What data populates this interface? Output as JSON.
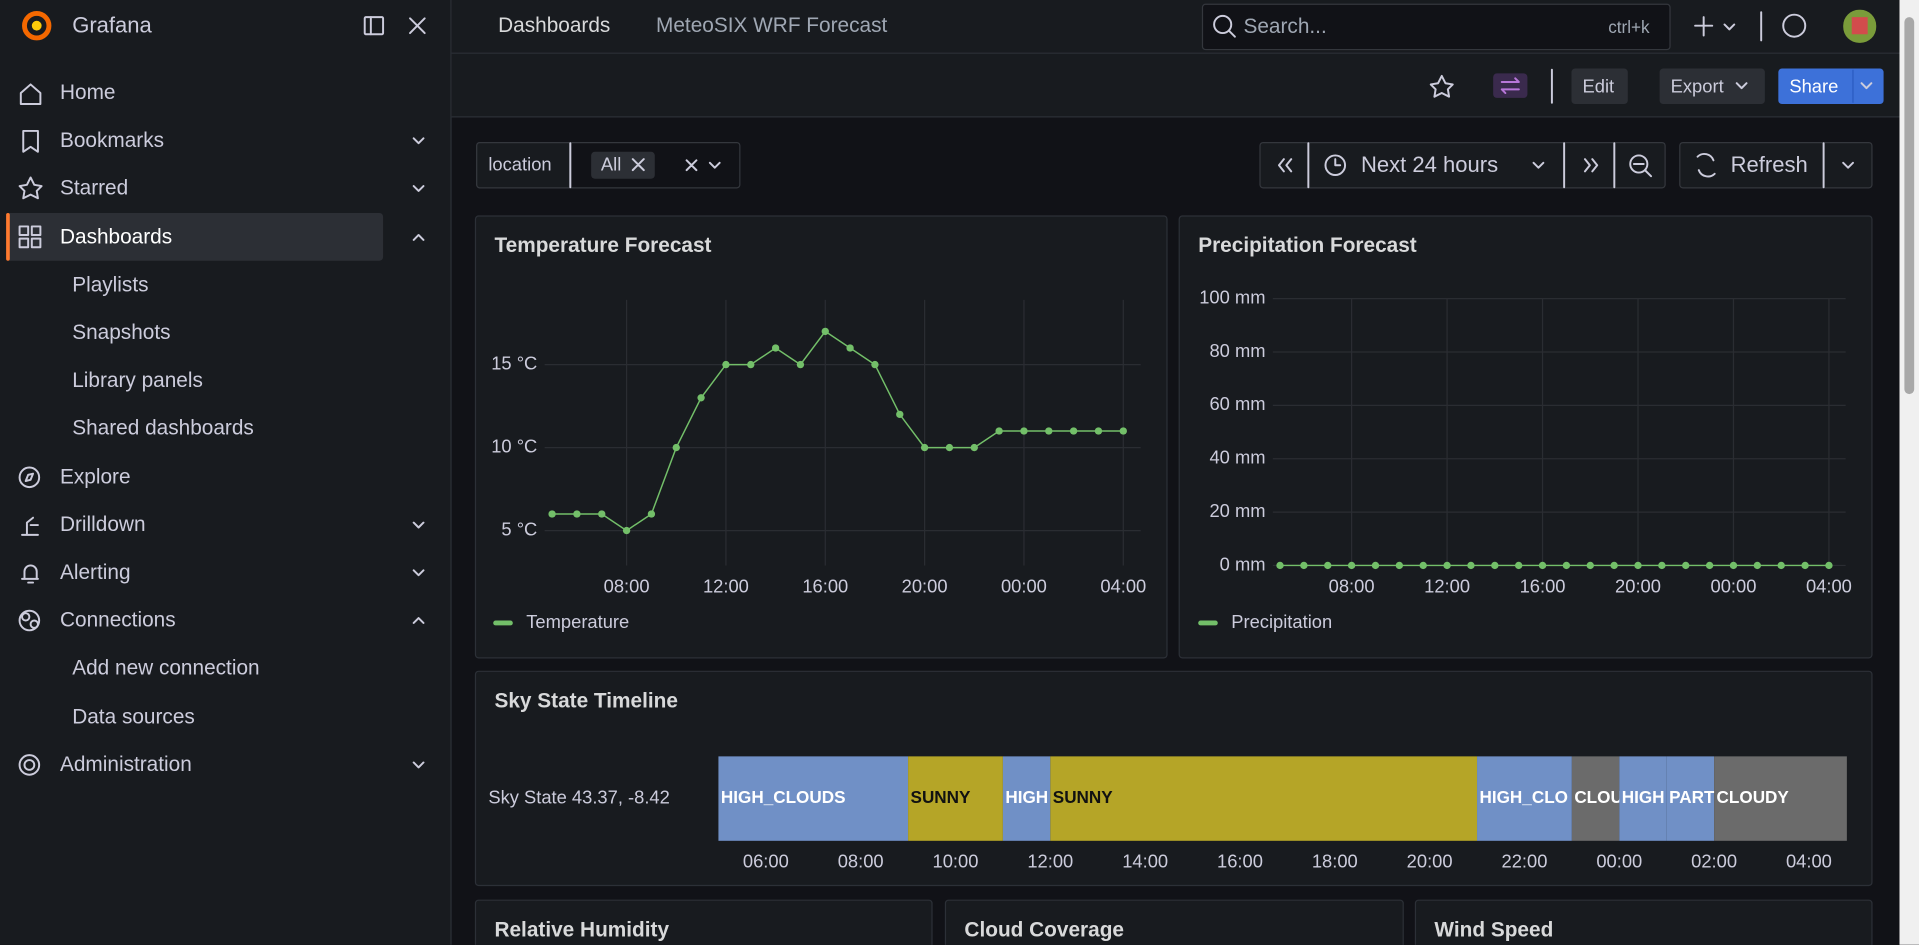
{
  "sidebar": {
    "brand": "Grafana",
    "items": [
      "Home",
      "Bookmarks",
      "Starred",
      "Dashboards",
      "Playlists",
      "Snapshots",
      "Library panels",
      "Shared dashboards",
      "Explore",
      "Drilldown",
      "Alerting",
      "Connections",
      "Add new connection",
      "Data sources",
      "Administration"
    ]
  },
  "topbar": {
    "breadcrumb": [
      "Dashboards",
      "MeteoSIX WRF Forecast"
    ],
    "search": "Search...",
    "shortcut": "ctrl+k"
  },
  "toolbar": {
    "edit": "Edit",
    "export": "Export",
    "share": "Share"
  },
  "variables": {
    "label": "location",
    "value": "All"
  },
  "time": {
    "range": "Next 24 hours",
    "refresh": "Refresh"
  },
  "panels": [
    {
      "type": "line",
      "title": "Temperature Forecast",
      "x": [
        5,
        6,
        7,
        8,
        9,
        10,
        11,
        12,
        13,
        14,
        15,
        16,
        17,
        18,
        19,
        20,
        21,
        22,
        23,
        24,
        25,
        26,
        27,
        28
      ],
      "series": [
        {
          "name": "Temperature",
          "color": "#73bf69",
          "values": [
            6,
            6,
            6,
            5,
            6,
            10,
            13,
            15,
            15,
            16,
            15,
            17,
            16,
            15,
            12,
            10,
            10,
            10,
            11,
            11,
            11,
            11,
            11,
            11
          ]
        }
      ],
      "xlim": [
        4.7,
        28.7
      ],
      "ylim": [
        2.9,
        18.9
      ],
      "xticks": [
        {
          "value": 8,
          "label": "08:00"
        },
        {
          "value": 12,
          "label": "12:00"
        },
        {
          "value": 16,
          "label": "16:00"
        },
        {
          "value": 20,
          "label": "20:00"
        },
        {
          "value": 24,
          "label": "00:00"
        },
        {
          "value": 28,
          "label": "04:00"
        }
      ],
      "yticks": [
        {
          "value": 5,
          "label": "5 °C"
        },
        {
          "value": 10,
          "label": "10 °C"
        },
        {
          "value": 15,
          "label": "15 °C"
        }
      ],
      "grid": true
    },
    {
      "type": "line",
      "title": "Precipitation Forecast",
      "x": [
        5,
        6,
        7,
        8,
        9,
        10,
        11,
        12,
        13,
        14,
        15,
        16,
        17,
        18,
        19,
        20,
        21,
        22,
        23,
        24,
        25,
        26,
        27,
        28
      ],
      "series": [
        {
          "name": "Precipitation",
          "color": "#73bf69",
          "values": [
            0,
            0,
            0,
            0,
            0,
            0,
            0,
            0,
            0,
            0,
            0,
            0,
            0,
            0,
            0,
            0,
            0,
            0,
            0,
            0,
            0,
            0,
            0,
            0
          ]
        }
      ],
      "xlim": [
        4.7,
        28.7
      ],
      "ylim": [
        0,
        100
      ],
      "xticks": [
        {
          "value": 8,
          "label": "08:00"
        },
        {
          "value": 12,
          "label": "12:00"
        },
        {
          "value": 16,
          "label": "16:00"
        },
        {
          "value": 20,
          "label": "20:00"
        },
        {
          "value": 24,
          "label": "00:00"
        },
        {
          "value": 28,
          "label": "04:00"
        }
      ],
      "yticks": [
        {
          "value": 0,
          "label": "0 mm"
        },
        {
          "value": 20,
          "label": "20 mm"
        },
        {
          "value": 40,
          "label": "40 mm"
        },
        {
          "value": 60,
          "label": "60 mm"
        },
        {
          "value": 80,
          "label": "80 mm"
        },
        {
          "value": 100,
          "label": "100 mm"
        }
      ],
      "grid": true
    },
    {
      "type": "timeline",
      "title": "Sky State Timeline",
      "row_label": "Sky State 43.37, -8.42",
      "xlim": [
        5,
        28.8
      ],
      "segments": [
        {
          "label": "HIGH_CLOUDS",
          "start": 5,
          "end": 9,
          "color": "#7090c6"
        },
        {
          "label": "SUNNY",
          "start": 9,
          "end": 11,
          "color": "#b5a527"
        },
        {
          "label": "HIGH",
          "start": 11,
          "end": 12,
          "color": "#7090c6"
        },
        {
          "label": "SUNNY",
          "start": 12,
          "end": 21,
          "color": "#b5a527"
        },
        {
          "label": "HIGH_CLO",
          "start": 21,
          "end": 23,
          "color": "#7090c6"
        },
        {
          "label": "CLOU",
          "start": 23,
          "end": 24,
          "color": "#6b6b6b"
        },
        {
          "label": "HIGH",
          "start": 24,
          "end": 25,
          "color": "#7090c6"
        },
        {
          "label": "PART",
          "start": 25,
          "end": 26,
          "color": "#7090c6"
        },
        {
          "label": "CLOUDY",
          "start": 26,
          "end": 28.8,
          "color": "#6b6b6b"
        }
      ],
      "xticks": [
        {
          "value": 6,
          "label": "06:00"
        },
        {
          "value": 8,
          "label": "08:00"
        },
        {
          "value": 10,
          "label": "10:00"
        },
        {
          "value": 12,
          "label": "12:00"
        },
        {
          "value": 14,
          "label": "14:00"
        },
        {
          "value": 16,
          "label": "16:00"
        },
        {
          "value": 18,
          "label": "18:00"
        },
        {
          "value": 20,
          "label": "20:00"
        },
        {
          "value": 22,
          "label": "22:00"
        },
        {
          "value": 24,
          "label": "00:00"
        },
        {
          "value": 26,
          "label": "02:00"
        },
        {
          "value": 28,
          "label": "04:00"
        }
      ]
    },
    {
      "title": "Relative Humidity"
    },
    {
      "title": "Cloud Coverage"
    },
    {
      "title": "Wind Speed"
    }
  ]
}
